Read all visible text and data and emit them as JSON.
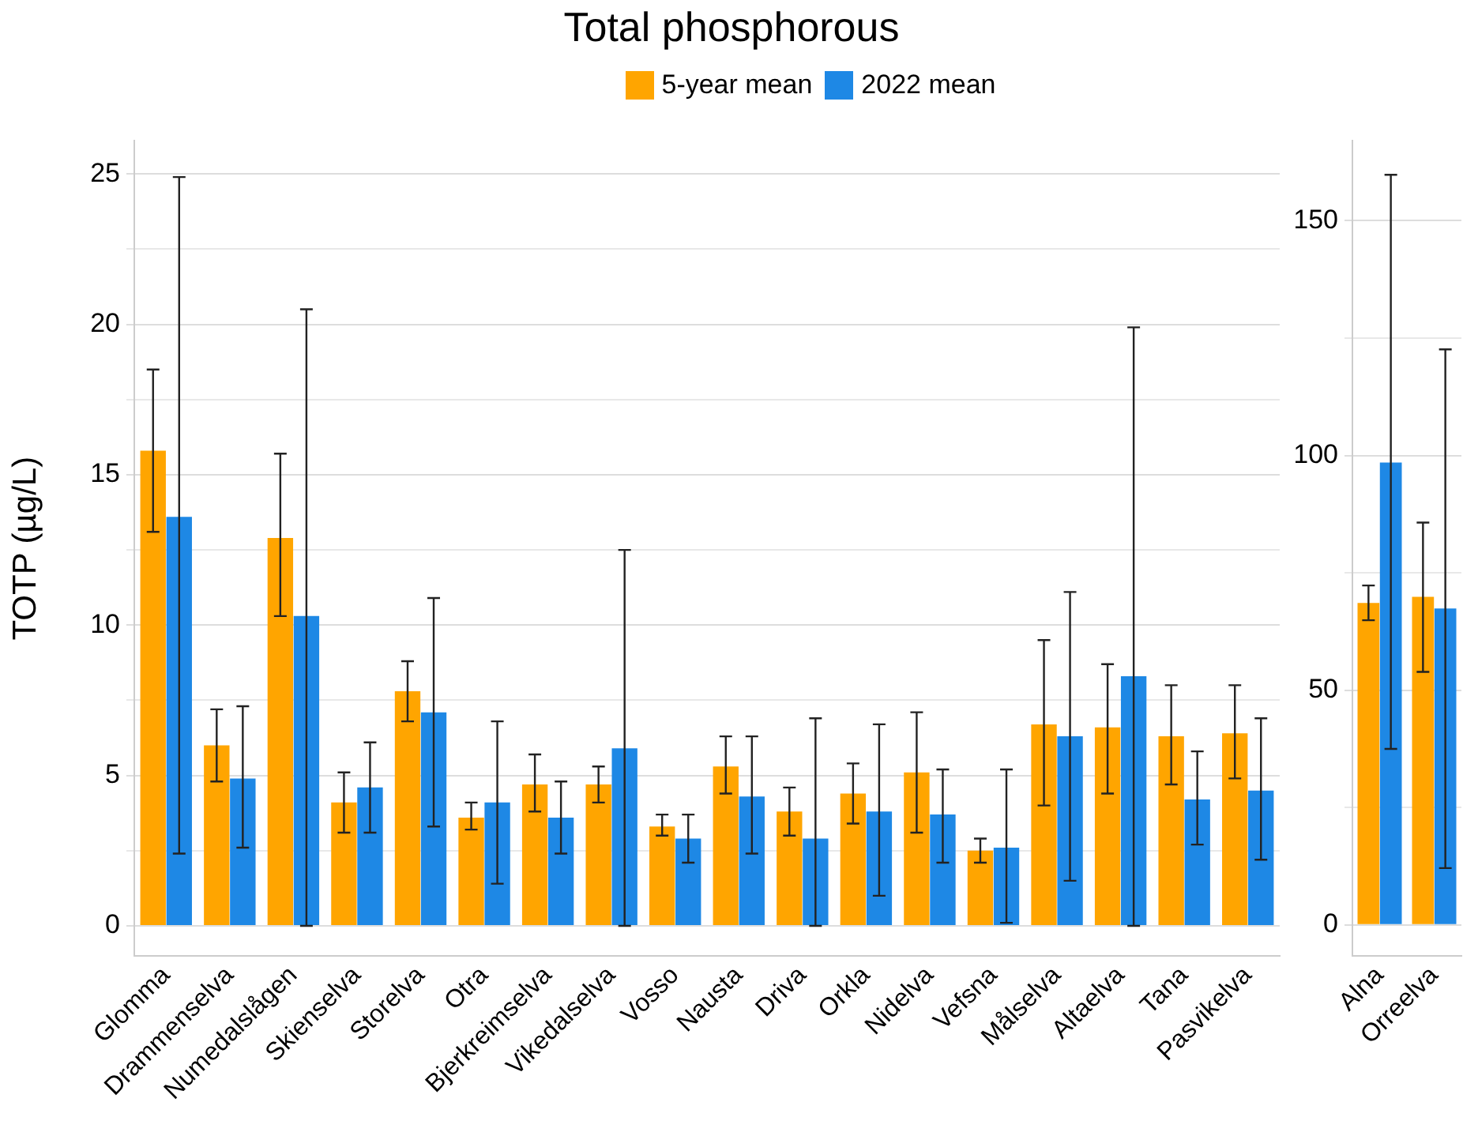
{
  "chart_data": [
    {
      "type": "bar",
      "title": "Total phosphorous",
      "ylabel": "TOTP (µg/L)",
      "legend": "top",
      "grid": "y",
      "categories": [
        "Glomma",
        "Drammenselva",
        "Numedalslågen",
        "Skienselva",
        "Storelva",
        "Otra",
        "Bjerkreimselva",
        "Vikedalselva",
        "Vosso",
        "Nausta",
        "Driva",
        "Orkla",
        "Nidelva",
        "Vefsna",
        "Målselva",
        "Altaelva",
        "Tana",
        "Pasvikelva"
      ],
      "ylim": [
        -1,
        26.1
      ],
      "yticks": [
        0,
        {
          "value": 2.5,
          "label": null
        },
        5,
        {
          "value": 7.5,
          "label": null
        },
        10,
        {
          "value": 12.5,
          "label": null
        },
        15,
        {
          "value": 17.5,
          "label": null
        },
        20,
        {
          "value": 22.5,
          "label": null
        },
        25
      ],
      "series": [
        {
          "name": "5-year mean",
          "color": "#ffa500",
          "values": [
            15.8,
            6.0,
            12.9,
            4.1,
            7.8,
            3.6,
            4.7,
            4.7,
            3.3,
            5.3,
            3.8,
            4.4,
            5.1,
            2.5,
            6.7,
            6.6,
            6.3,
            6.4
          ],
          "errors": [
            [
              13.1,
              18.5
            ],
            [
              4.8,
              7.2
            ],
            [
              10.3,
              15.7
            ],
            [
              3.1,
              5.1
            ],
            [
              6.8,
              8.8
            ],
            [
              3.2,
              4.1
            ],
            [
              3.8,
              5.7
            ],
            [
              4.1,
              5.3
            ],
            [
              3.0,
              3.7
            ],
            [
              4.4,
              6.3
            ],
            [
              3.0,
              4.6
            ],
            [
              3.4,
              5.4
            ],
            [
              3.1,
              7.1
            ],
            [
              2.1,
              2.9
            ],
            [
              4.0,
              9.5
            ],
            [
              4.4,
              8.7
            ],
            [
              4.7,
              8.0
            ],
            [
              4.9,
              8.0
            ]
          ]
        },
        {
          "name": "2022 mean",
          "color": "#1e88e5",
          "values": [
            13.6,
            4.9,
            10.3,
            4.6,
            7.1,
            4.1,
            3.6,
            5.9,
            2.9,
            4.3,
            2.9,
            3.8,
            3.7,
            2.6,
            6.3,
            8.3,
            4.2,
            4.5
          ],
          "errors": [
            [
              2.4,
              24.9
            ],
            [
              2.6,
              7.3
            ],
            [
              0,
              20.5
            ],
            [
              3.1,
              6.1
            ],
            [
              3.3,
              10.9
            ],
            [
              1.4,
              6.8
            ],
            [
              2.4,
              4.8
            ],
            [
              0,
              12.5
            ],
            [
              2.1,
              3.7
            ],
            [
              2.4,
              6.3
            ],
            [
              0,
              6.9
            ],
            [
              1.0,
              6.7
            ],
            [
              2.1,
              5.2
            ],
            [
              0.1,
              5.2
            ],
            [
              1.5,
              11.1
            ],
            [
              0,
              19.9
            ],
            [
              2.7,
              5.8
            ],
            [
              2.2,
              6.9
            ]
          ]
        }
      ]
    },
    {
      "type": "bar",
      "grid": "y",
      "categories": [
        "Alna",
        "Orreelva"
      ],
      "ylim": [
        -6.6,
        167
      ],
      "yticks": [
        0,
        {
          "value": 25,
          "label": null
        },
        50,
        {
          "value": 75,
          "label": null
        },
        100,
        {
          "value": 125,
          "label": null
        },
        150
      ],
      "series": [
        {
          "color": "#ffa500",
          "values": [
            68.6,
            69.9
          ],
          "errors": [
            [
              64.9,
              72.3
            ],
            [
              53.9,
              85.7
            ]
          ]
        },
        {
          "color": "#1e88e5",
          "values": [
            98.5,
            67.4
          ],
          "errors": [
            [
              37.5,
              159.8
            ],
            [
              12.1,
              122.6
            ]
          ]
        }
      ]
    }
  ]
}
